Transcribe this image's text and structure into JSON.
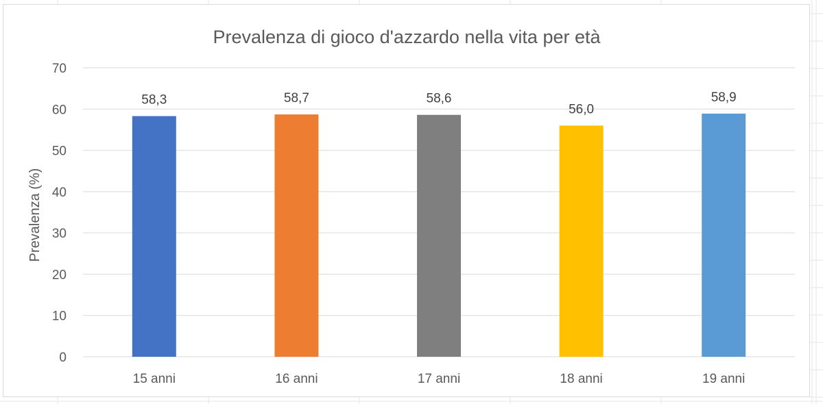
{
  "chart_data": {
    "type": "bar",
    "title": "Prevalenza di gioco d'azzardo nella vita per età",
    "xlabel": "",
    "ylabel": "Prevalenza (%)",
    "categories": [
      "15 anni",
      "16 anni",
      "17 anni",
      "18 anni",
      "19 anni"
    ],
    "values": [
      58.3,
      58.7,
      58.6,
      56.0,
      58.9
    ],
    "data_labels": [
      "58,3",
      "58,7",
      "58,6",
      "56,0",
      "58,9"
    ],
    "bar_colors": [
      "#4472c4",
      "#ed7d31",
      "#7f7f7f",
      "#ffc000",
      "#5b9bd5"
    ],
    "ylim": [
      0,
      70
    ],
    "yticks": [
      0,
      10,
      20,
      30,
      40,
      50,
      60,
      70
    ],
    "grid": true,
    "legend": "none"
  },
  "colors": {
    "gridline": "#d9d9d9",
    "text": "#595959"
  }
}
